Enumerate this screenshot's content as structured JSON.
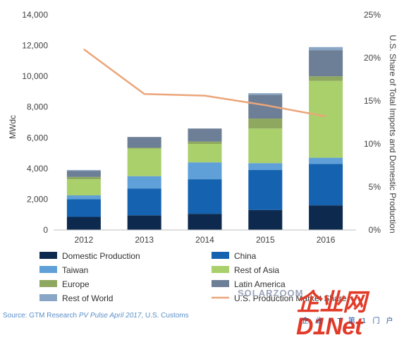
{
  "chart_data": {
    "type": "bar",
    "stacked": true,
    "categories": [
      "2012",
      "2013",
      "2014",
      "2015",
      "2016"
    ],
    "ylabel": "MWdc",
    "y2label": "U.S. Share of Total Imports and Domestic Production",
    "ylim": [
      0,
      14000
    ],
    "y2lim": [
      0,
      25
    ],
    "yticks": [
      "0",
      "2,000",
      "4,000",
      "6,000",
      "8,000",
      "10,000",
      "12,000",
      "14,000"
    ],
    "y2ticks": [
      "0%",
      "5%",
      "10%",
      "15%",
      "20%",
      "25%"
    ],
    "grid": false,
    "legend_position": "bottom",
    "series": [
      {
        "name": "Domestic Production",
        "color": "#0d2a4e",
        "values": [
          850,
          950,
          1050,
          1300,
          1600
        ]
      },
      {
        "name": "China",
        "color": "#1462b0",
        "values": [
          1150,
          1750,
          2250,
          2600,
          2700
        ]
      },
      {
        "name": "Taiwan",
        "color": "#5fa0d8",
        "values": [
          250,
          800,
          1100,
          450,
          400
        ]
      },
      {
        "name": "Rest of Asia",
        "color": "#a9d06a",
        "values": [
          1050,
          1800,
          1200,
          2250,
          5000
        ]
      },
      {
        "name": "Europe",
        "color": "#8fa860",
        "values": [
          150,
          50,
          150,
          650,
          300
        ]
      },
      {
        "name": "Latin America",
        "color": "#6d7f96",
        "values": [
          400,
          700,
          850,
          1550,
          1700
        ]
      },
      {
        "name": "Rest of World",
        "color": "#8aa6c6",
        "values": [
          50,
          0,
          0,
          100,
          200
        ]
      }
    ],
    "line_series": {
      "name": "U.S. Production Market Share",
      "color": "#eba57a",
      "axis": "right",
      "values": [
        21,
        15.8,
        15.6,
        14.5,
        13.2
      ]
    }
  },
  "source": {
    "prefix": "Source: GTM Research ",
    "italic": "PV Pulse April 2017",
    "suffix": ", U.S. Customs"
  },
  "watermark": {
    "site": "SOLARZOOM",
    "brand": "企业网D1Net",
    "tagline": "企 业 I T 第 1 门 户"
  }
}
